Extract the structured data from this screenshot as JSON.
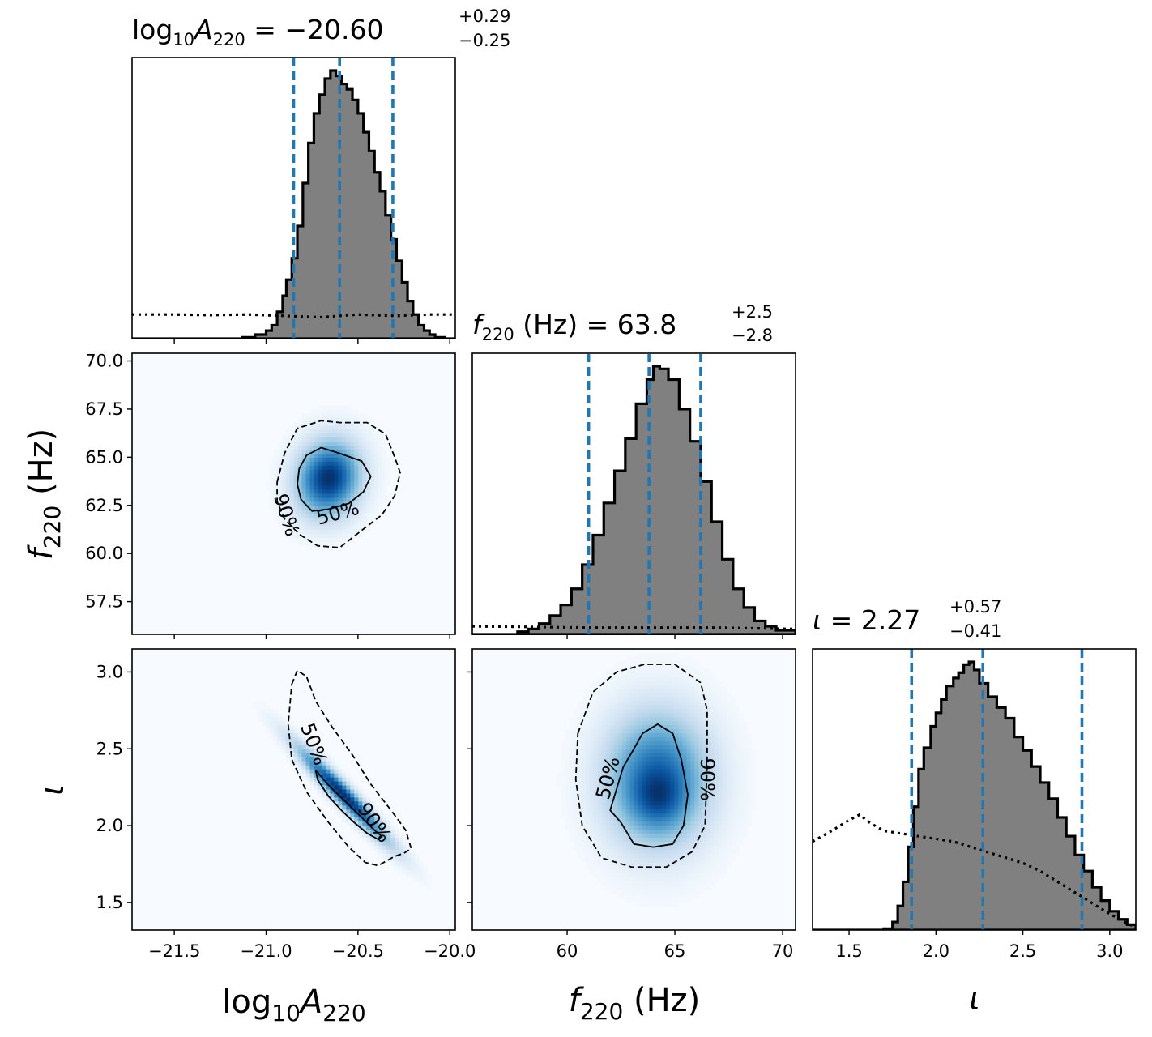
{
  "chart_data": [
    {
      "type": "histogram",
      "panel": "marginal",
      "title": {
        "prefix": "log",
        "sub1": "10",
        "mid": "A",
        "sub2": "220",
        "value": " = −20.60",
        "plus": "+0.29",
        "minus": "−0.25"
      },
      "x_range": [
        -21.73,
        -19.97
      ],
      "quantiles": [
        -20.85,
        -20.6,
        -20.31
      ],
      "posterior": [
        [
          -21.73,
          0
        ],
        [
          -21.2,
          0
        ],
        [
          -21.13,
          0.005
        ],
        [
          -21.06,
          0.015
        ],
        [
          -21.0,
          0.03
        ],
        [
          -20.97,
          0.05
        ],
        [
          -20.94,
          0.1
        ],
        [
          -20.91,
          0.16
        ],
        [
          -20.89,
          0.22
        ],
        [
          -20.86,
          0.3
        ],
        [
          -20.83,
          0.42
        ],
        [
          -20.8,
          0.58
        ],
        [
          -20.77,
          0.73
        ],
        [
          -20.74,
          0.84
        ],
        [
          -20.71,
          0.91
        ],
        [
          -20.68,
          0.97
        ],
        [
          -20.65,
          1.0
        ],
        [
          -20.62,
          0.98
        ],
        [
          -20.59,
          0.95
        ],
        [
          -20.56,
          0.93
        ],
        [
          -20.53,
          0.89
        ],
        [
          -20.5,
          0.84
        ],
        [
          -20.47,
          0.77
        ],
        [
          -20.44,
          0.7
        ],
        [
          -20.41,
          0.62
        ],
        [
          -20.38,
          0.55
        ],
        [
          -20.35,
          0.46
        ],
        [
          -20.32,
          0.37
        ],
        [
          -20.29,
          0.29
        ],
        [
          -20.26,
          0.21
        ],
        [
          -20.23,
          0.14
        ],
        [
          -20.2,
          0.09
        ],
        [
          -20.17,
          0.05
        ],
        [
          -20.14,
          0.03
        ],
        [
          -20.11,
          0.015
        ],
        [
          -20.08,
          0.005
        ],
        [
          -20.03,
          0
        ],
        [
          -19.97,
          0
        ]
      ],
      "prior": [
        [
          -21.73,
          0.09
        ],
        [
          -21.5,
          0.09
        ],
        [
          -21.3,
          0.088
        ],
        [
          -21.1,
          0.09
        ],
        [
          -20.9,
          0.085
        ],
        [
          -20.7,
          0.08
        ],
        [
          -20.5,
          0.09
        ],
        [
          -20.3,
          0.085
        ],
        [
          -20.1,
          0.09
        ],
        [
          -19.97,
          0.09
        ]
      ],
      "x_ticks": [
        -21.5,
        -21.0,
        -20.5,
        -20.0
      ]
    },
    {
      "type": "histogram",
      "panel": "marginal",
      "title": {
        "mid": "f",
        "sub2": "220",
        "value": " (Hz) = 63.8",
        "plus": "+2.5",
        "minus": "−2.8"
      },
      "x_range": [
        55.6,
        70.6
      ],
      "quantiles": [
        61.0,
        63.8,
        66.2
      ],
      "posterior": [
        [
          55.6,
          0
        ],
        [
          57.2,
          0
        ],
        [
          57.7,
          0.01
        ],
        [
          58.2,
          0.02
        ],
        [
          58.7,
          0.04
        ],
        [
          59.2,
          0.07
        ],
        [
          59.7,
          0.11
        ],
        [
          60.2,
          0.17
        ],
        [
          60.7,
          0.26
        ],
        [
          61.2,
          0.37
        ],
        [
          61.7,
          0.49
        ],
        [
          62.2,
          0.61
        ],
        [
          62.7,
          0.73
        ],
        [
          63.2,
          0.86
        ],
        [
          63.7,
          0.95
        ],
        [
          64.0,
          1.0
        ],
        [
          64.3,
          0.99
        ],
        [
          64.7,
          0.95
        ],
        [
          65.2,
          0.84
        ],
        [
          65.7,
          0.72
        ],
        [
          66.2,
          0.57
        ],
        [
          66.7,
          0.42
        ],
        [
          67.2,
          0.28
        ],
        [
          67.7,
          0.17
        ],
        [
          68.2,
          0.1
        ],
        [
          68.7,
          0.05
        ],
        [
          69.2,
          0.03
        ],
        [
          69.7,
          0.015
        ],
        [
          70.6,
          0
        ]
      ],
      "prior": [
        [
          55.6,
          0.03
        ],
        [
          58,
          0.028
        ],
        [
          61,
          0.025
        ],
        [
          64,
          0.025
        ],
        [
          67,
          0.025
        ],
        [
          70.6,
          0.02
        ]
      ],
      "x_ticks": [
        60,
        65,
        70
      ]
    },
    {
      "type": "histogram",
      "panel": "marginal",
      "title": {
        "mid": "ι",
        "value": " = 2.27",
        "plus": "+0.57",
        "minus": "−0.41"
      },
      "x_range": [
        1.29,
        3.15
      ],
      "quantiles": [
        1.86,
        2.27,
        2.84
      ],
      "posterior": [
        [
          1.29,
          0
        ],
        [
          1.65,
          0
        ],
        [
          1.7,
          0.005
        ],
        [
          1.75,
          0.03
        ],
        [
          1.78,
          0.09
        ],
        [
          1.81,
          0.18
        ],
        [
          1.84,
          0.31
        ],
        [
          1.87,
          0.46
        ],
        [
          1.9,
          0.6
        ],
        [
          1.93,
          0.68
        ],
        [
          1.97,
          0.76
        ],
        [
          2.0,
          0.81
        ],
        [
          2.03,
          0.86
        ],
        [
          2.06,
          0.91
        ],
        [
          2.1,
          0.94
        ],
        [
          2.13,
          0.96
        ],
        [
          2.16,
          0.99
        ],
        [
          2.19,
          1.0
        ],
        [
          2.22,
          0.97
        ],
        [
          2.25,
          0.92
        ],
        [
          2.3,
          0.87
        ],
        [
          2.35,
          0.83
        ],
        [
          2.4,
          0.79
        ],
        [
          2.45,
          0.72
        ],
        [
          2.5,
          0.67
        ],
        [
          2.55,
          0.61
        ],
        [
          2.6,
          0.55
        ],
        [
          2.65,
          0.49
        ],
        [
          2.7,
          0.42
        ],
        [
          2.75,
          0.35
        ],
        [
          2.8,
          0.28
        ],
        [
          2.85,
          0.22
        ],
        [
          2.9,
          0.16
        ],
        [
          2.95,
          0.11
        ],
        [
          3.0,
          0.07
        ],
        [
          3.05,
          0.04
        ],
        [
          3.1,
          0.02
        ],
        [
          3.15,
          0
        ]
      ],
      "prior": [
        [
          1.29,
          0.33
        ],
        [
          1.4,
          0.37
        ],
        [
          1.5,
          0.41
        ],
        [
          1.56,
          0.43
        ],
        [
          1.62,
          0.4
        ],
        [
          1.7,
          0.37
        ],
        [
          1.8,
          0.36
        ],
        [
          1.9,
          0.35
        ],
        [
          2.0,
          0.34
        ],
        [
          2.1,
          0.33
        ],
        [
          2.2,
          0.31
        ],
        [
          2.3,
          0.29
        ],
        [
          2.4,
          0.27
        ],
        [
          2.5,
          0.25
        ],
        [
          2.6,
          0.22
        ],
        [
          2.7,
          0.18
        ],
        [
          2.8,
          0.14
        ],
        [
          2.9,
          0.1
        ],
        [
          3.0,
          0.06
        ],
        [
          3.1,
          0.025
        ],
        [
          3.15,
          0.01
        ]
      ],
      "x_ticks": [
        1.5,
        2.0,
        2.5,
        3.0
      ]
    },
    {
      "type": "heatmap",
      "panel": "2d",
      "x_range": [
        -21.73,
        -19.97
      ],
      "y_range": [
        55.8,
        70.4
      ],
      "density_peaks": [
        {
          "x": -20.66,
          "y": 63.9,
          "sx": 0.11,
          "sy": 1.25,
          "rho": 0.1,
          "w": 1.0
        }
      ],
      "contour_50": [
        [
          -20.82,
          64.4
        ],
        [
          -20.78,
          65.1
        ],
        [
          -20.7,
          65.5
        ],
        [
          -20.6,
          65.2
        ],
        [
          -20.48,
          64.8
        ],
        [
          -20.43,
          64.0
        ],
        [
          -20.47,
          63.2
        ],
        [
          -20.55,
          62.6
        ],
        [
          -20.66,
          62.3
        ],
        [
          -20.75,
          62.2
        ],
        [
          -20.81,
          62.8
        ],
        [
          -20.83,
          63.6
        ]
      ],
      "contour_90": [
        [
          -20.94,
          63.7
        ],
        [
          -20.9,
          65.2
        ],
        [
          -20.83,
          66.5
        ],
        [
          -20.7,
          66.9
        ],
        [
          -20.6,
          66.8
        ],
        [
          -20.45,
          66.8
        ],
        [
          -20.35,
          66.2
        ],
        [
          -20.3,
          65.0
        ],
        [
          -20.27,
          64.2
        ],
        [
          -20.3,
          63.0
        ],
        [
          -20.37,
          62.0
        ],
        [
          -20.48,
          61.2
        ],
        [
          -20.6,
          60.3
        ],
        [
          -20.72,
          60.4
        ],
        [
          -20.82,
          61.0
        ],
        [
          -20.9,
          61.8
        ],
        [
          -20.94,
          62.7
        ]
      ],
      "labels": [
        {
          "text": "50%",
          "x": -20.61,
          "y": 62.1,
          "rot": -15
        },
        {
          "text": "90%",
          "x": -20.89,
          "y": 62.0,
          "rot": 72
        }
      ],
      "y_ticks": [
        57.5,
        60.0,
        62.5,
        65.0,
        67.5,
        70.0
      ],
      "ylabel": {
        "italic": "f",
        "sub": "220",
        "rest": " (Hz)"
      }
    },
    {
      "type": "heatmap",
      "panel": "2d",
      "x_range": [
        -21.73,
        -19.97
      ],
      "y_range": [
        1.32,
        3.15
      ],
      "density_peaks": [
        {
          "x": -20.58,
          "y": 2.2,
          "sx": 0.16,
          "sy": 0.2,
          "rho": -0.96,
          "w": 1.0
        }
      ],
      "contour_50": [
        [
          -20.73,
          2.36
        ],
        [
          -20.65,
          2.25
        ],
        [
          -20.58,
          2.17
        ],
        [
          -20.52,
          2.1
        ],
        [
          -20.46,
          2.03
        ],
        [
          -20.41,
          1.97
        ],
        [
          -20.37,
          1.93
        ],
        [
          -20.39,
          1.91
        ],
        [
          -20.45,
          1.95
        ],
        [
          -20.52,
          2.02
        ],
        [
          -20.59,
          2.1
        ],
        [
          -20.66,
          2.19
        ],
        [
          -20.72,
          2.3
        ]
      ],
      "contour_90": [
        [
          -20.86,
          2.92
        ],
        [
          -20.83,
          3.01
        ],
        [
          -20.78,
          2.97
        ],
        [
          -20.73,
          2.81
        ],
        [
          -20.64,
          2.64
        ],
        [
          -20.53,
          2.46
        ],
        [
          -20.43,
          2.27
        ],
        [
          -20.32,
          2.1
        ],
        [
          -20.24,
          1.97
        ],
        [
          -20.21,
          1.85
        ],
        [
          -20.25,
          1.82
        ],
        [
          -20.3,
          1.8
        ],
        [
          -20.39,
          1.74
        ],
        [
          -20.46,
          1.76
        ],
        [
          -20.55,
          1.86
        ],
        [
          -20.66,
          2.02
        ],
        [
          -20.78,
          2.22
        ],
        [
          -20.86,
          2.43
        ],
        [
          -20.88,
          2.66
        ]
      ],
      "labels": [
        {
          "text": "50%",
          "x": -20.74,
          "y": 2.53,
          "rot": 70
        },
        {
          "text": "90%",
          "x": -20.41,
          "y": 2.02,
          "rot": 55
        }
      ],
      "y_ticks": [
        1.5,
        2.0,
        2.5,
        3.0
      ],
      "ylabel": {
        "italic": "ι"
      },
      "xlabel": {
        "prefix": "log",
        "sub1": "10",
        "italic": "A",
        "sub2": "220"
      }
    },
    {
      "type": "heatmap",
      "panel": "2d",
      "x_range": [
        55.6,
        70.6
      ],
      "y_range": [
        1.32,
        3.15
      ],
      "density_peaks": [
        {
          "x": 64.2,
          "y": 2.3,
          "sx": 1.55,
          "sy": 0.28,
          "rho": 0.0,
          "w": 1.0
        },
        {
          "x": 64.2,
          "y": 2.17,
          "sx": 0.8,
          "sy": 0.12,
          "rho": 0.0,
          "w": 0.35
        }
      ],
      "contour_50": [
        [
          62.0,
          2.1
        ],
        [
          62.6,
          2.38
        ],
        [
          63.1,
          2.5
        ],
        [
          63.5,
          2.6
        ],
        [
          64.2,
          2.66
        ],
        [
          64.9,
          2.6
        ],
        [
          65.3,
          2.43
        ],
        [
          65.6,
          2.2
        ],
        [
          65.4,
          2.0
        ],
        [
          64.9,
          1.88
        ],
        [
          64.0,
          1.86
        ],
        [
          63.1,
          1.88
        ],
        [
          62.5,
          2.02
        ]
      ],
      "contour_90": [
        [
          60.5,
          2.6
        ],
        [
          61.2,
          2.87
        ],
        [
          62.3,
          3.0
        ],
        [
          63.6,
          3.05
        ],
        [
          65.0,
          3.05
        ],
        [
          66.2,
          2.93
        ],
        [
          66.5,
          2.75
        ],
        [
          66.5,
          2.4
        ],
        [
          66.4,
          2.0
        ],
        [
          65.8,
          1.83
        ],
        [
          64.6,
          1.73
        ],
        [
          63.0,
          1.73
        ],
        [
          61.6,
          1.79
        ],
        [
          60.7,
          2.0
        ],
        [
          60.4,
          2.3
        ]
      ],
      "labels": [
        {
          "text": "50%",
          "x": 61.9,
          "y": 2.31,
          "rot": -75
        },
        {
          "text": "90%",
          "x": 66.5,
          "y": 2.3,
          "rot": 90
        }
      ],
      "xlabel": {
        "italic": "f",
        "sub": "220",
        "rest": " (Hz)"
      }
    }
  ],
  "x_tick_text": {
    "a": [
      "−21.5",
      "−21.0",
      "−20.5",
      "−20.0"
    ],
    "f": [
      "60",
      "65",
      "70"
    ],
    "i": [
      "1.5",
      "2.0",
      "2.5",
      "3.0"
    ]
  },
  "colors": {
    "fill": "#808080",
    "quantile": "#1f77b4",
    "cmap_low": "#f7fbff",
    "cmap_high": "#08306b"
  }
}
